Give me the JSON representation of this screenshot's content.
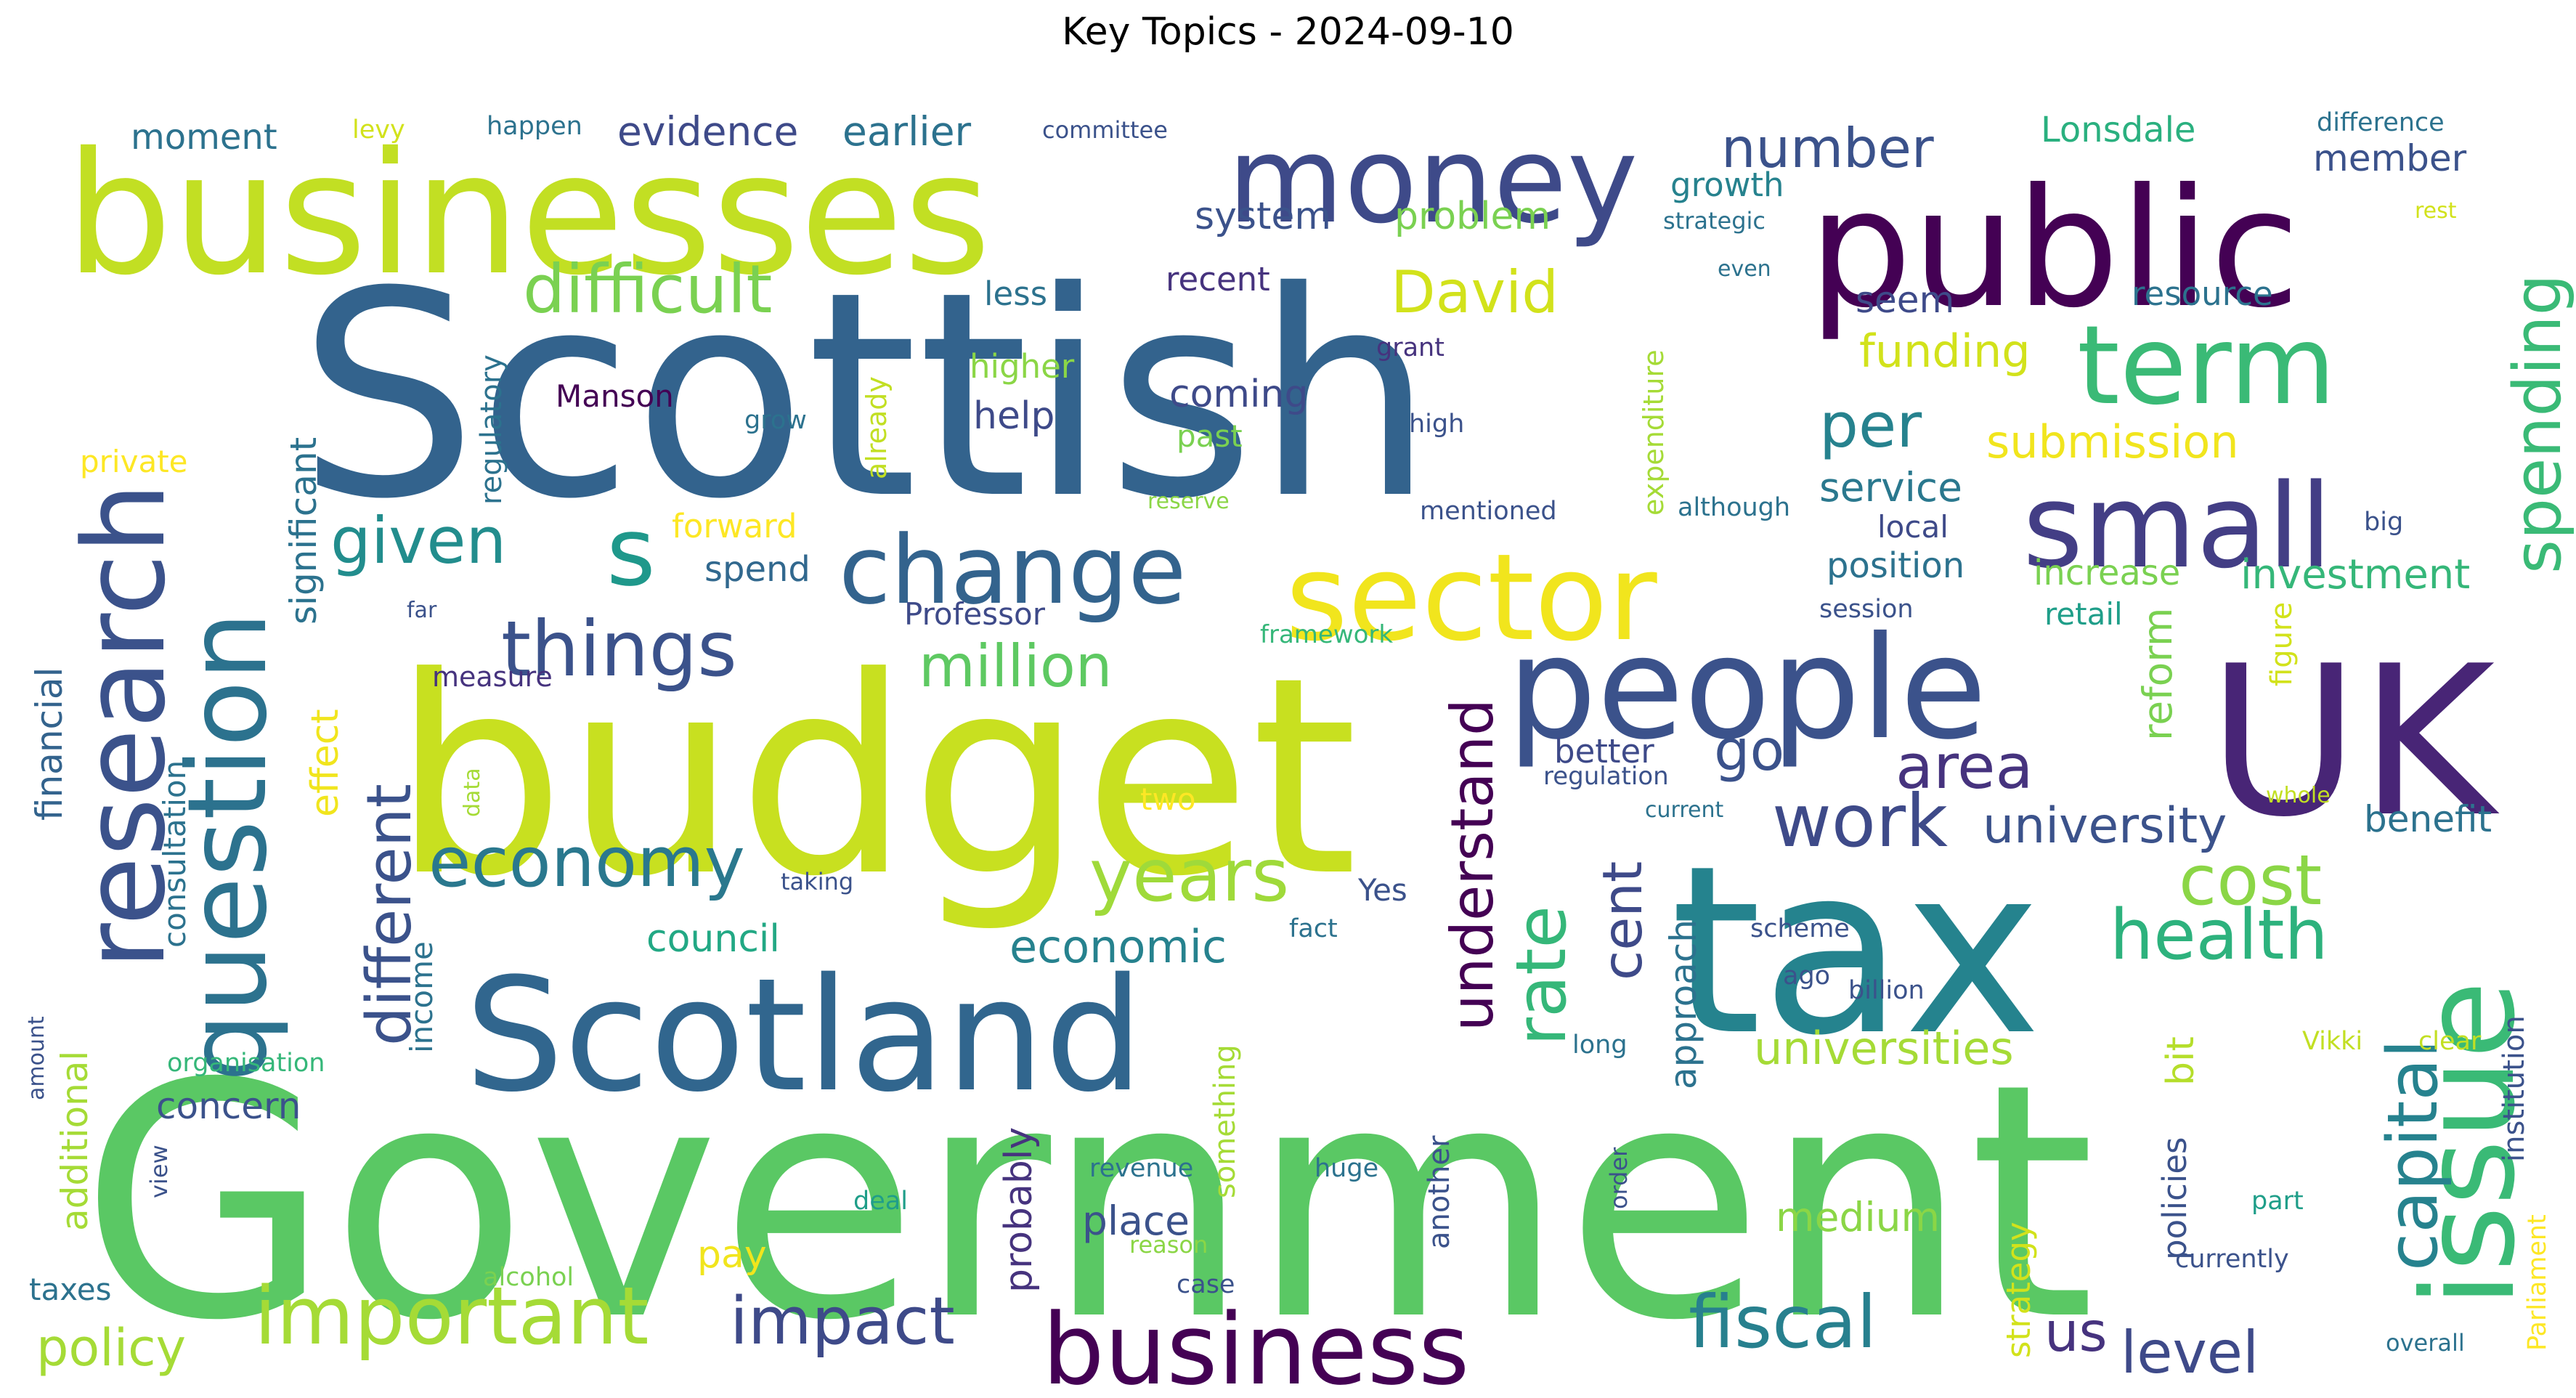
{
  "title": "Key Topics - 2024-09-10",
  "colors": {
    "dp": "#440154",
    "pu": "#472c7a",
    "in": "#3b528b",
    "bl": "#31688e",
    "te": "#26828e",
    "tg": "#1f9e89",
    "gr": "#35b779",
    "lg": "#6ece58",
    "yg": "#b5de2b",
    "ye": "#fde725"
  },
  "words": [
    {
      "text": "Government",
      "weight": 100,
      "color": "#5ac864"
    },
    {
      "text": "Scottish",
      "weight": 93,
      "color": "#33638d"
    },
    {
      "text": "budget",
      "weight": 90,
      "color": "#c8e020"
    },
    {
      "text": "tax",
      "weight": 75,
      "color": "#25838e"
    },
    {
      "text": "UK",
      "weight": 66,
      "color": "#482576"
    },
    {
      "text": "businesses",
      "weight": 56,
      "color": "#c2df23"
    },
    {
      "text": "public",
      "weight": 53,
      "color": "#440154"
    },
    {
      "text": "Scotland",
      "weight": 50,
      "color": "#31668e"
    },
    {
      "text": "people",
      "weight": 45,
      "color": "#3b528b"
    },
    {
      "text": "issue",
      "weight": 42,
      "color": "#3aba76"
    },
    {
      "text": "money",
      "weight": 39,
      "color": "#3e4a89"
    },
    {
      "text": "sector",
      "weight": 38,
      "color": "#f1e51d"
    },
    {
      "text": "small",
      "weight": 37,
      "color": "#433e85"
    },
    {
      "text": "research",
      "weight": 36,
      "color": "#3b528b"
    },
    {
      "text": "question",
      "weight": 35,
      "color": "#2c728e"
    },
    {
      "text": "term",
      "weight": 33,
      "color": "#3aba76"
    },
    {
      "text": "business",
      "weight": 32,
      "color": "#440154"
    },
    {
      "text": "change",
      "weight": 30,
      "color": "#33638d"
    },
    {
      "text": "s",
      "weight": 28,
      "color": "#1f988b"
    },
    {
      "text": "important",
      "weight": 25,
      "color": "#a5db36"
    },
    {
      "text": "things",
      "weight": 24,
      "color": "#3b528b"
    },
    {
      "text": "years",
      "weight": 23,
      "color": "#9fda3a"
    },
    {
      "text": "fiscal",
      "weight": 23,
      "color": "#27808e"
    },
    {
      "text": "work",
      "weight": 22,
      "color": "#3e4a89"
    },
    {
      "text": "economy",
      "weight": 22,
      "color": "#2a788e"
    },
    {
      "text": "capital",
      "weight": 22,
      "color": "#26828e"
    },
    {
      "text": "rate",
      "weight": 22,
      "color": "#35b779"
    },
    {
      "text": "health",
      "weight": 22,
      "color": "#2db27d"
    },
    {
      "text": "cost",
      "weight": 22,
      "color": "#8bd646"
    },
    {
      "text": "difficult",
      "weight": 21,
      "color": "#7ad151"
    },
    {
      "text": "impact",
      "weight": 21,
      "color": "#3e4a89"
    },
    {
      "text": "spending",
      "weight": 21,
      "color": "#3aba76"
    },
    {
      "text": "given",
      "weight": 20,
      "color": "#228d8d"
    },
    {
      "text": "different",
      "weight": 20,
      "color": "#3b528b"
    },
    {
      "text": "area",
      "weight": 20,
      "color": "#46337e"
    },
    {
      "text": "per",
      "weight": 20,
      "color": "#26828e"
    },
    {
      "text": "David",
      "weight": 19,
      "color": "#d2e21b"
    },
    {
      "text": "understand",
      "weight": 19,
      "color": "#440154"
    },
    {
      "text": "level",
      "weight": 19,
      "color": "#3e4a89"
    },
    {
      "text": "number",
      "weight": 18,
      "color": "#3b528b"
    },
    {
      "text": "million",
      "weight": 18,
      "color": "#5ec962"
    },
    {
      "text": "go",
      "weight": 18,
      "color": "#3b528b"
    },
    {
      "text": "cent",
      "weight": 17,
      "color": "#3e4a89"
    },
    {
      "text": "university",
      "weight": 16,
      "color": "#3b528b"
    },
    {
      "text": "policy",
      "weight": 16,
      "color": "#a5db36"
    },
    {
      "text": "us",
      "weight": 16,
      "color": "#46337e"
    },
    {
      "text": "economic",
      "weight": 15,
      "color": "#26828e"
    },
    {
      "text": "submission",
      "weight": 14,
      "color": "#f1e51d"
    },
    {
      "text": "funding",
      "weight": 14,
      "color": "#d2e21b"
    },
    {
      "text": "universities",
      "weight": 14,
      "color": "#a5db36"
    },
    {
      "text": "evidence",
      "weight": 13,
      "color": "#3e4a89"
    },
    {
      "text": "earlier",
      "weight": 13,
      "color": "#2c728e"
    },
    {
      "text": "investment",
      "weight": 13,
      "color": "#35b779"
    },
    {
      "text": "reform",
      "weight": 13,
      "color": "#7ad151"
    },
    {
      "text": "system",
      "weight": 12,
      "color": "#3b528b"
    },
    {
      "text": "problem",
      "weight": 12,
      "color": "#7ad151"
    },
    {
      "text": "coming",
      "weight": 12,
      "color": "#3e4a89"
    },
    {
      "text": "place",
      "weight": 12,
      "color": "#3b528b"
    },
    {
      "text": "medium",
      "weight": 12,
      "color": "#8bd646"
    },
    {
      "text": "service",
      "weight": 12,
      "color": "#2a788e"
    },
    {
      "text": "council",
      "weight": 12,
      "color": "#22a884"
    },
    {
      "text": "concern",
      "weight": 11,
      "color": "#3b528b"
    },
    {
      "text": "approach",
      "weight": 11,
      "color": "#2c728e"
    },
    {
      "text": "additional",
      "weight": 11,
      "color": "#a5db36"
    },
    {
      "text": "significant",
      "weight": 11,
      "color": "#2c728e"
    },
    {
      "text": "financial",
      "weight": 11,
      "color": "#33638d"
    },
    {
      "text": "probably",
      "weight": 11,
      "color": "#46337e"
    },
    {
      "text": "benefit",
      "weight": 11,
      "color": "#2c728e"
    },
    {
      "text": "member",
      "weight": 11,
      "color": "#3b528b"
    },
    {
      "text": "seem",
      "weight": 11,
      "color": "#3e4a89"
    },
    {
      "text": "effect",
      "weight": 11,
      "color": "#f1e51d"
    },
    {
      "text": "bit",
      "weight": 11,
      "color": "#b5de2b"
    },
    {
      "text": "increase",
      "weight": 11,
      "color": "#7ad151"
    },
    {
      "text": "position",
      "weight": 11,
      "color": "#2c728e"
    },
    {
      "text": "pay",
      "weight": 11,
      "color": "#f1e51d"
    },
    {
      "text": "help",
      "weight": 11,
      "color": "#3e4a89"
    },
    {
      "text": "spend",
      "weight": 11,
      "color": "#31688e"
    },
    {
      "text": "forward",
      "weight": 10,
      "color": "#fde725"
    },
    {
      "text": "growth",
      "weight": 10,
      "color": "#26828e"
    },
    {
      "text": "resource",
      "weight": 10,
      "color": "#2c728e"
    },
    {
      "text": "strategy",
      "weight": 10,
      "color": "#d2e21b"
    },
    {
      "text": "Manson",
      "weight": 10,
      "color": "#440154"
    },
    {
      "text": "moment",
      "weight": 10,
      "color": "#2c728e"
    },
    {
      "text": "Lonsdale",
      "weight": 10,
      "color": "#2ab07f"
    },
    {
      "text": "higher",
      "weight": 10,
      "color": "#8bd646"
    },
    {
      "text": "recent",
      "weight": 10,
      "color": "#46337e"
    },
    {
      "text": "less",
      "weight": 10,
      "color": "#2c728e"
    },
    {
      "text": "two",
      "weight": 9,
      "color": "#fde725"
    },
    {
      "text": "taxes",
      "weight": 9,
      "color": "#2c728e"
    },
    {
      "text": "better",
      "weight": 9,
      "color": "#3e4a89"
    },
    {
      "text": "retail",
      "weight": 9,
      "color": "#1f9e89"
    },
    {
      "text": "policies",
      "weight": 9,
      "color": "#3b528b"
    },
    {
      "text": "income",
      "weight": 9,
      "color": "#2c728e"
    },
    {
      "text": "consultation",
      "weight": 9,
      "color": "#2c728e"
    },
    {
      "text": "expenditure",
      "weight": 9,
      "color": "#a5db36"
    },
    {
      "text": "regulatory",
      "weight": 9,
      "color": "#2c728e"
    },
    {
      "text": "measure",
      "weight": 9,
      "color": "#46337e"
    },
    {
      "text": "local",
      "weight": 9,
      "color": "#3e4a89"
    },
    {
      "text": "Professor",
      "weight": 9,
      "color": "#3e4a89"
    },
    {
      "text": "past",
      "weight": 9,
      "color": "#7ad151"
    },
    {
      "text": "Yes",
      "weight": 9,
      "color": "#3b528b"
    },
    {
      "text": "figure",
      "weight": 9,
      "color": "#d2e21b"
    },
    {
      "text": "institution",
      "weight": 9,
      "color": "#3b528b"
    },
    {
      "text": "something",
      "weight": 9,
      "color": "#a5db36"
    },
    {
      "text": "private",
      "weight": 8,
      "color": "#fde725"
    },
    {
      "text": "Parliament",
      "weight": 8,
      "color": "#fde725"
    },
    {
      "text": "already",
      "weight": 8,
      "color": "#c2df23"
    },
    {
      "text": "another",
      "weight": 8,
      "color": "#3b528b"
    },
    {
      "text": "levy",
      "weight": 7,
      "color": "#d2e21b"
    },
    {
      "text": "happen",
      "weight": 7,
      "color": "#2c728e"
    },
    {
      "text": "committee",
      "weight": 7,
      "color": "#3b528b"
    },
    {
      "text": "difference",
      "weight": 7,
      "color": "#2c728e"
    },
    {
      "text": "strategic",
      "weight": 7,
      "color": "#2c728e"
    },
    {
      "text": "grow",
      "weight": 7,
      "color": "#2c728e"
    },
    {
      "text": "grant",
      "weight": 7,
      "color": "#46337e"
    },
    {
      "text": "high",
      "weight": 7,
      "color": "#3b528b"
    },
    {
      "text": "mentioned",
      "weight": 7,
      "color": "#3b528b"
    },
    {
      "text": "although",
      "weight": 7,
      "color": "#2c728e"
    },
    {
      "text": "big",
      "weight": 7,
      "color": "#3b528b"
    },
    {
      "text": "session",
      "weight": 7,
      "color": "#3b528b"
    },
    {
      "text": "regulation",
      "weight": 7,
      "color": "#3b528b"
    },
    {
      "text": "framework",
      "weight": 7,
      "color": "#35b779"
    },
    {
      "text": "taking",
      "weight": 7,
      "color": "#3b528b"
    },
    {
      "text": "fact",
      "weight": 7,
      "color": "#2c728e"
    },
    {
      "text": "scheme",
      "weight": 7,
      "color": "#3b528b"
    },
    {
      "text": "ago",
      "weight": 7,
      "color": "#3b528b"
    },
    {
      "text": "billion",
      "weight": 7,
      "color": "#3b528b"
    },
    {
      "text": "long",
      "weight": 7,
      "color": "#2c728e"
    },
    {
      "text": "revenue",
      "weight": 7,
      "color": "#2c728e"
    },
    {
      "text": "huge",
      "weight": 7,
      "color": "#2c728e"
    },
    {
      "text": "deal",
      "weight": 7,
      "color": "#1f9e89"
    },
    {
      "text": "reason",
      "weight": 7,
      "color": "#8bd646"
    },
    {
      "text": "order",
      "weight": 6,
      "color": "#3b528b"
    },
    {
      "text": "part",
      "weight": 7,
      "color": "#1f9e89"
    },
    {
      "text": "currently",
      "weight": 7,
      "color": "#3b528b"
    },
    {
      "text": "case",
      "weight": 7,
      "color": "#3b528b"
    },
    {
      "text": "alcohol",
      "weight": 7,
      "color": "#7ad151"
    },
    {
      "text": "organisation",
      "weight": 7,
      "color": "#35b779"
    },
    {
      "text": "amount",
      "weight": 6,
      "color": "#3b528b"
    },
    {
      "text": "view",
      "weight": 6,
      "color": "#3b528b"
    },
    {
      "text": "Vikki",
      "weight": 7,
      "color": "#c2df23"
    },
    {
      "text": "clear",
      "weight": 7,
      "color": "#c2df23"
    },
    {
      "text": "overall",
      "weight": 7,
      "color": "#2c728e"
    },
    {
      "text": "rest",
      "weight": 6,
      "color": "#d2e21b"
    },
    {
      "text": "even",
      "weight": 6,
      "color": "#2c728e"
    },
    {
      "text": "reserve",
      "weight": 6,
      "color": "#8bd646"
    },
    {
      "text": "far",
      "weight": 6,
      "color": "#3b528b"
    },
    {
      "text": "data",
      "weight": 6,
      "color": "#a5db36"
    },
    {
      "text": "whole",
      "weight": 6,
      "color": "#c2df23"
    },
    {
      "text": "current",
      "weight": 6,
      "color": "#2c728e"
    }
  ]
}
